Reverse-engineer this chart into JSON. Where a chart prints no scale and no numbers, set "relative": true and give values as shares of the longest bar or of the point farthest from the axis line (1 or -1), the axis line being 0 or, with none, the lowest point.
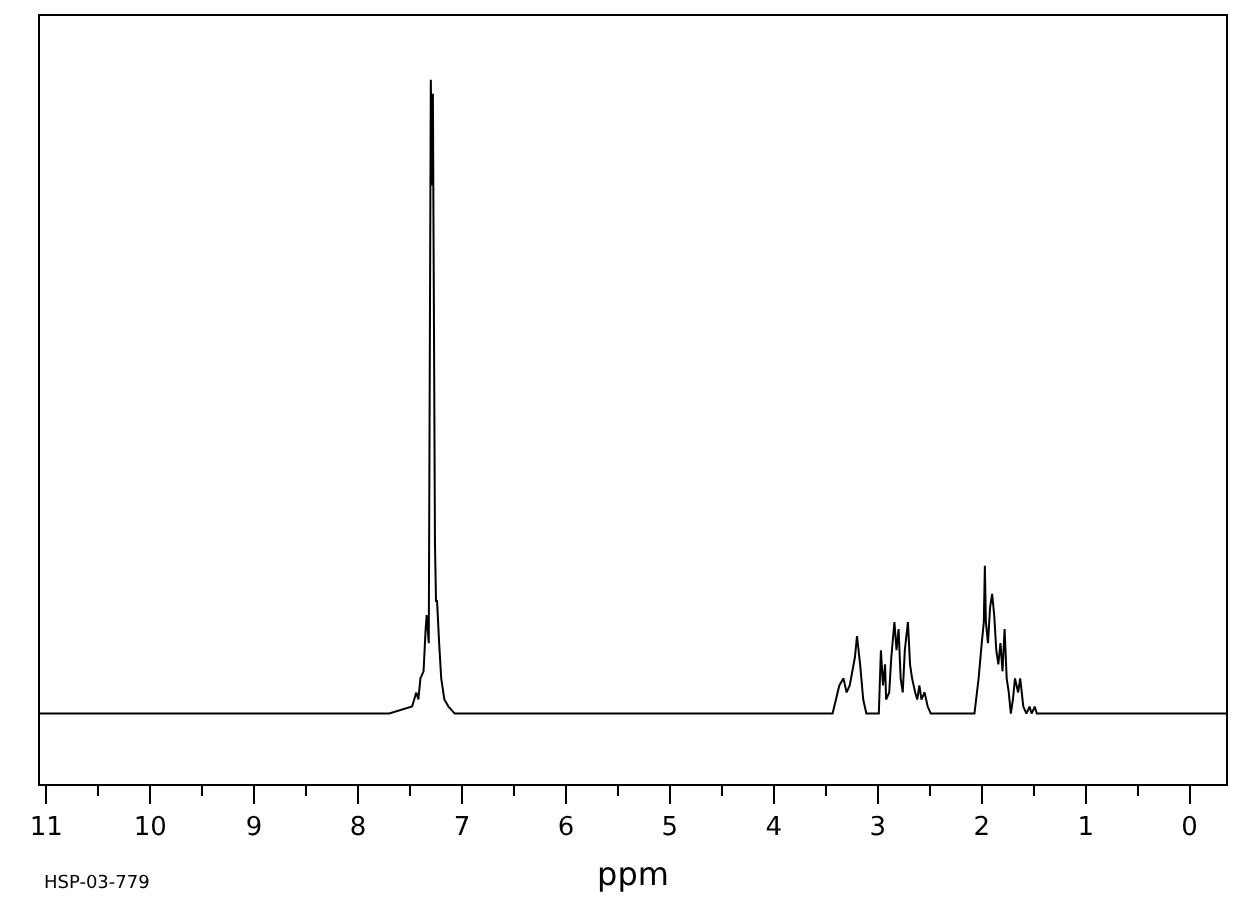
{
  "chart_data": {
    "type": "line",
    "xlabel": "ppm",
    "annotations": [
      "HSP-03-779"
    ],
    "relative": true,
    "color": "#000000",
    "line_style": "solid",
    "xlim": [
      11.06,
      -0.35
    ],
    "xticks": [
      11,
      {
        "value": 10.5,
        "label": null
      },
      10,
      {
        "value": 9.5,
        "label": null
      },
      9,
      {
        "value": 8.5,
        "label": null
      },
      8,
      {
        "value": 7.5,
        "label": null
      },
      7,
      {
        "value": 6.5,
        "label": null
      },
      6,
      {
        "value": 5.5,
        "label": null
      },
      5,
      {
        "value": 4.5,
        "label": null
      },
      4,
      {
        "value": 3.5,
        "label": null
      },
      3,
      {
        "value": 2.5,
        "label": null
      },
      2,
      {
        "value": 1.5,
        "label": null
      },
      1,
      {
        "value": 0.5,
        "label": null
      },
      0
    ],
    "x": [
      11.06,
      10.5,
      10.0,
      9.5,
      9.0,
      8.5,
      8.0,
      7.7,
      7.48,
      7.44,
      7.42,
      7.4,
      7.37,
      7.35,
      7.34,
      7.32,
      7.3,
      7.29,
      7.28,
      7.26,
      7.25,
      7.24,
      7.23,
      7.22,
      7.2,
      7.17,
      7.13,
      7.07,
      6.5,
      6.0,
      5.5,
      5.0,
      4.5,
      4.0,
      3.6,
      3.435,
      3.37,
      3.33,
      3.3,
      3.27,
      3.22,
      3.2,
      3.17,
      3.14,
      3.11,
      3.03,
      2.99,
      2.97,
      2.95,
      2.93,
      2.92,
      2.89,
      2.87,
      2.84,
      2.82,
      2.8,
      2.78,
      2.76,
      2.74,
      2.71,
      2.69,
      2.67,
      2.64,
      2.62,
      2.6,
      2.58,
      2.55,
      2.52,
      2.49,
      2.3,
      2.07,
      2.03,
      2.0,
      1.98,
      1.97,
      1.96,
      1.94,
      1.92,
      1.9,
      1.88,
      1.86,
      1.84,
      1.82,
      1.8,
      1.78,
      1.76,
      1.74,
      1.72,
      1.7,
      1.68,
      1.65,
      1.63,
      1.6,
      1.57,
      1.54,
      1.52,
      1.49,
      1.47,
      1.2,
      0.8,
      0.4,
      0.0,
      -0.35
    ],
    "values": [
      0.1,
      0.1,
      0.1,
      0.1,
      0.1,
      0.1,
      0.1,
      0.1,
      0.11,
      0.13,
      0.12,
      0.15,
      0.16,
      0.22,
      0.24,
      0.2,
      1.0,
      0.85,
      0.98,
      0.34,
      0.26,
      0.26,
      0.23,
      0.2,
      0.15,
      0.12,
      0.11,
      0.1,
      0.1,
      0.1,
      0.1,
      0.1,
      0.1,
      0.1,
      0.1,
      0.1,
      0.14,
      0.15,
      0.13,
      0.14,
      0.18,
      0.21,
      0.17,
      0.12,
      0.1,
      0.1,
      0.1,
      0.19,
      0.14,
      0.17,
      0.12,
      0.13,
      0.18,
      0.23,
      0.19,
      0.22,
      0.15,
      0.13,
      0.19,
      0.23,
      0.17,
      0.15,
      0.13,
      0.12,
      0.14,
      0.12,
      0.13,
      0.11,
      0.1,
      0.1,
      0.1,
      0.15,
      0.2,
      0.23,
      0.31,
      0.23,
      0.2,
      0.25,
      0.27,
      0.24,
      0.19,
      0.17,
      0.2,
      0.16,
      0.22,
      0.15,
      0.13,
      0.1,
      0.12,
      0.15,
      0.13,
      0.15,
      0.11,
      0.1,
      0.11,
      0.1,
      0.11,
      0.1,
      0.1,
      0.1,
      0.1,
      0.1,
      0.1
    ]
  }
}
